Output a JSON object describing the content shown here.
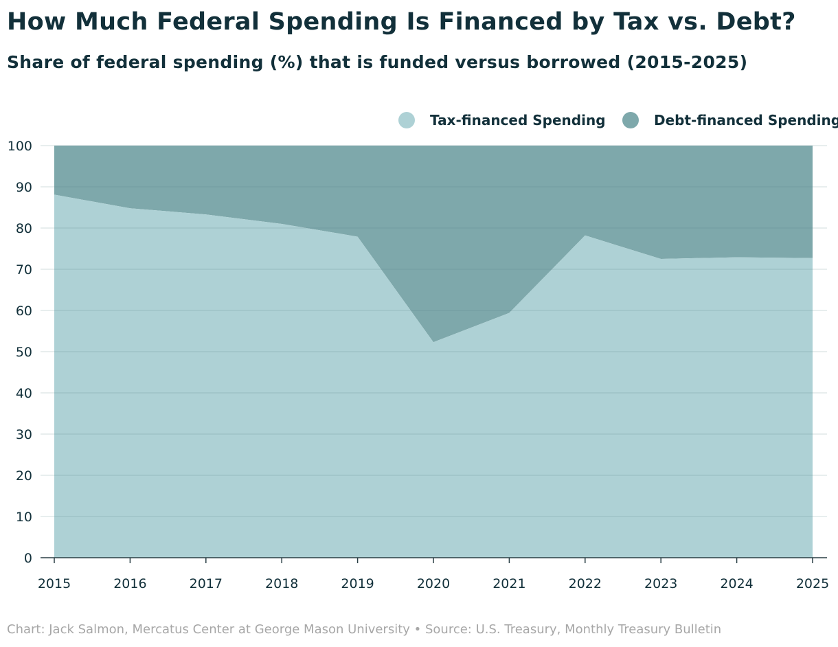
{
  "chart_data": {
    "type": "area",
    "stacked": true,
    "title": "How Much Federal Spending Is Financed by Tax vs. Debt?",
    "subtitle": "Share of federal spending (%) that is funded versus borrowed (2015-2025)",
    "xlabel": "",
    "ylabel": "",
    "ylim": [
      0,
      100
    ],
    "yticks": [
      "0",
      "10",
      "20",
      "30",
      "40",
      "50",
      "60",
      "70",
      "80",
      "90",
      "100"
    ],
    "x": [
      "2015",
      "2016",
      "2017",
      "2018",
      "2019",
      "2020",
      "2021",
      "2022",
      "2023",
      "2024",
      "2025"
    ],
    "series": [
      {
        "name": "Tax-financed Spending",
        "color": "#aed1d5",
        "values": [
          88.1,
          84.8,
          83.3,
          81.0,
          77.9,
          52.3,
          59.4,
          78.2,
          72.5,
          72.9,
          72.7
        ]
      },
      {
        "name": "Debt-financed Spending",
        "color": "#7ea8ab",
        "values": [
          11.9,
          15.2,
          16.7,
          19.0,
          22.1,
          47.7,
          40.6,
          21.8,
          27.5,
          27.1,
          27.3
        ]
      }
    ],
    "grid": true,
    "legend": "top-right"
  },
  "footer": "Chart: Jack Salmon, Mercatus Center at George Mason University • Source: U.S. Treasury, Monthly Treasury Bulletin"
}
